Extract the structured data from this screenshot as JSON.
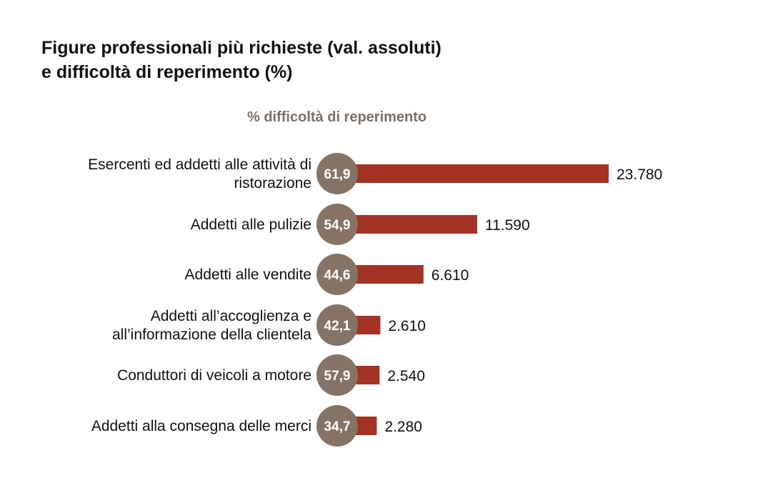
{
  "title_line1": "Figure professionali più richieste (val. assoluti)",
  "title_line2": "e difficoltà di reperimento (%)",
  "subtitle": "% difficoltà di reperimento",
  "colors": {
    "bar": "#a33325",
    "circle": "#857466",
    "circle_text": "#ffffff",
    "subtitle": "#7e6e62"
  },
  "chart_data": {
    "type": "bar",
    "orientation": "horizontal",
    "title": "Figure professionali più richieste (val. assoluti) e difficoltà di reperimento (%)",
    "categories": [
      [
        "Esercenti ed addetti alle attività di",
        "ristorazione"
      ],
      [
        "Addetti alle pulizie"
      ],
      [
        "Addetti alle vendite"
      ],
      [
        "Addetti all’accoglienza e",
        "all’informazione della clientela"
      ],
      [
        "Conduttori di veicoli a motore"
      ],
      [
        "Addetti alla consegna delle merci"
      ]
    ],
    "values": [
      23780,
      11590,
      6610,
      2610,
      2540,
      2280
    ],
    "value_labels": [
      "23.780",
      "11.590",
      "6.610",
      "2.610",
      "2.540",
      "2.280"
    ],
    "difficulty_pct": [
      61.9,
      54.9,
      44.6,
      42.1,
      57.9,
      34.7
    ],
    "difficulty_labels": [
      "61,9",
      "54,9",
      "44,6",
      "42,1",
      "57,9",
      "34,7"
    ],
    "difficulty_header": "% difficoltà di reperimento"
  }
}
